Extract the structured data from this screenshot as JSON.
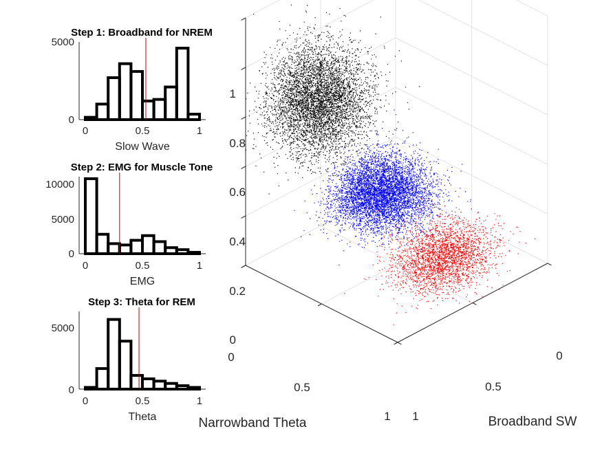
{
  "chart_data": [
    {
      "type": "bar",
      "title": "Step 1: Broadband for NREM",
      "xlabel": "Slow Wave",
      "xlim": [
        0,
        1
      ],
      "ylim": [
        0,
        5000
      ],
      "xticks": [
        "0",
        "0.5",
        "1"
      ],
      "yticks": [
        "0",
        "5000"
      ],
      "bin_centers": [
        0.05,
        0.15,
        0.25,
        0.35,
        0.45,
        0.55,
        0.65,
        0.75,
        0.85,
        0.95
      ],
      "values": [
        150,
        1000,
        2700,
        3600,
        3100,
        1200,
        1300,
        2100,
        4600,
        350
      ],
      "threshold": 0.53,
      "colors": {
        "bars": "#000000",
        "threshold": "#c00000"
      }
    },
    {
      "type": "bar",
      "title": "Step 2: EMG for Muscle Tone",
      "xlabel": "EMG",
      "xlim": [
        0,
        1
      ],
      "ylim": [
        0,
        11500
      ],
      "xticks": [
        "0",
        "0.5",
        "1"
      ],
      "yticks": [
        "0",
        "5000",
        "10000"
      ],
      "bin_centers": [
        0.05,
        0.15,
        0.25,
        0.35,
        0.45,
        0.55,
        0.65,
        0.75,
        0.85,
        0.95
      ],
      "values": [
        11200,
        2900,
        1500,
        1300,
        2000,
        2700,
        1800,
        900,
        600,
        200
      ],
      "threshold": 0.3,
      "colors": {
        "bars": "#000000",
        "threshold": "#c00000"
      }
    },
    {
      "type": "bar",
      "title": "Step 3: Theta for REM",
      "xlabel": "Theta",
      "xlim": [
        0,
        1
      ],
      "ylim": [
        0,
        6800
      ],
      "xticks": [
        "0",
        "0.5",
        "1"
      ],
      "yticks": [
        "0",
        "5000"
      ],
      "bin_centers": [
        0.05,
        0.15,
        0.25,
        0.35,
        0.45,
        0.55,
        0.65,
        0.75,
        0.85,
        0.95
      ],
      "values": [
        150,
        1800,
        6100,
        4200,
        1200,
        900,
        700,
        500,
        300,
        150
      ],
      "threshold": 0.47,
      "colors": {
        "bars": "#000000",
        "threshold": "#c00000"
      }
    },
    {
      "type": "scatter",
      "title": "",
      "xlabel": "Narrowband Theta",
      "ylabel": "Broadband SW",
      "zlabel": "",
      "xlim": [
        0,
        1
      ],
      "ylim": [
        0,
        1
      ],
      "zlim": [
        0,
        1
      ],
      "xticks": [
        "0",
        "0.5",
        "1"
      ],
      "yticks": [
        "0",
        "0.5",
        "1"
      ],
      "zticks": [
        "0",
        "0.2",
        "0.4",
        "0.6",
        "0.8",
        "1"
      ],
      "grid": true,
      "series": [
        {
          "color": "#0000ff",
          "points": 9000,
          "center": {
            "x": 0.15,
            "y": 0.25,
            "z": 0.1
          },
          "spread": {
            "x": 0.12,
            "y": 0.12,
            "z": 0.06
          }
        },
        {
          "color": "#000000",
          "points": 11000,
          "center": {
            "x": 0.2,
            "y": 0.72,
            "z": 0.64
          },
          "spread": {
            "x": 0.12,
            "y": 0.12,
            "z": 0.1
          }
        },
        {
          "color": "#ff0000",
          "points": 2800,
          "center": {
            "x": 0.78,
            "y": 0.48,
            "z": 0.11
          },
          "spread": {
            "x": 0.1,
            "y": 0.13,
            "z": 0.05
          }
        }
      ]
    }
  ]
}
